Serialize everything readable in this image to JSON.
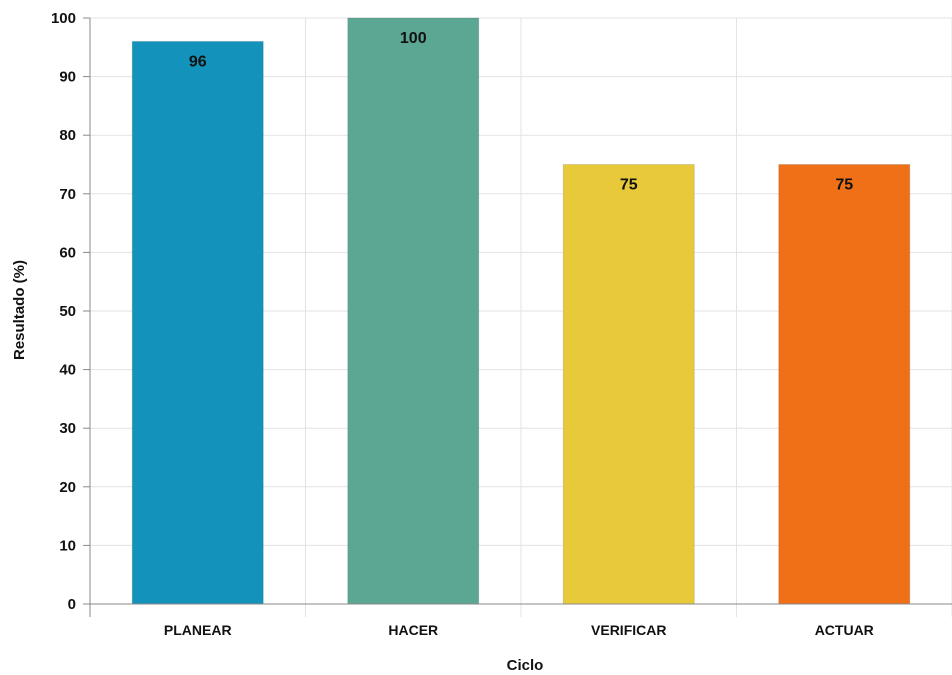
{
  "chart_data": {
    "type": "bar",
    "categories": [
      "PLANEAR",
      "HACER",
      "VERIFICAR",
      "ACTUAR"
    ],
    "values": [
      96,
      100,
      75,
      75
    ],
    "colors": [
      "#1393bb",
      "#5ba793",
      "#e8c93a",
      "#f07018"
    ],
    "title": "",
    "xlabel": "Ciclo",
    "ylabel": "Resultado (%)",
    "ylim": [
      0,
      100
    ],
    "yticks": [
      0,
      10,
      20,
      30,
      40,
      50,
      60,
      70,
      80,
      90,
      100
    ],
    "grid": true,
    "data_labels": [
      "96",
      "100",
      "75",
      "75"
    ]
  }
}
